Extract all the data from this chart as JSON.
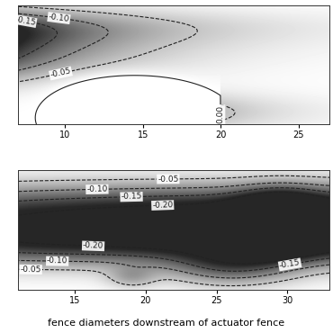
{
  "plot1": {
    "x_range": [
      7.0,
      27.0
    ],
    "y_range": [
      0.0,
      1.0
    ],
    "x_ticks": [
      10,
      15,
      20,
      25
    ],
    "levels": [
      -0.15,
      -0.1,
      -0.05,
      0.0
    ],
    "contour_lw": 0.8
  },
  "plot2": {
    "x_range": [
      11.0,
      33.0
    ],
    "y_range": [
      0.0,
      1.0
    ],
    "x_ticks": [
      15,
      20,
      25,
      30
    ],
    "levels": [
      -0.2,
      -0.15,
      -0.1,
      -0.05
    ],
    "contour_lw": 0.8
  },
  "xlabel": "fence diameters downstream of actuator fence",
  "background_color": "#ffffff",
  "contour_linecolor": "#222222",
  "label_fontsize": 6.5,
  "xlabel_fontsize": 8,
  "label_bbox": {
    "boxstyle": "square,pad=0.15",
    "fc": "white",
    "ec": "none"
  }
}
